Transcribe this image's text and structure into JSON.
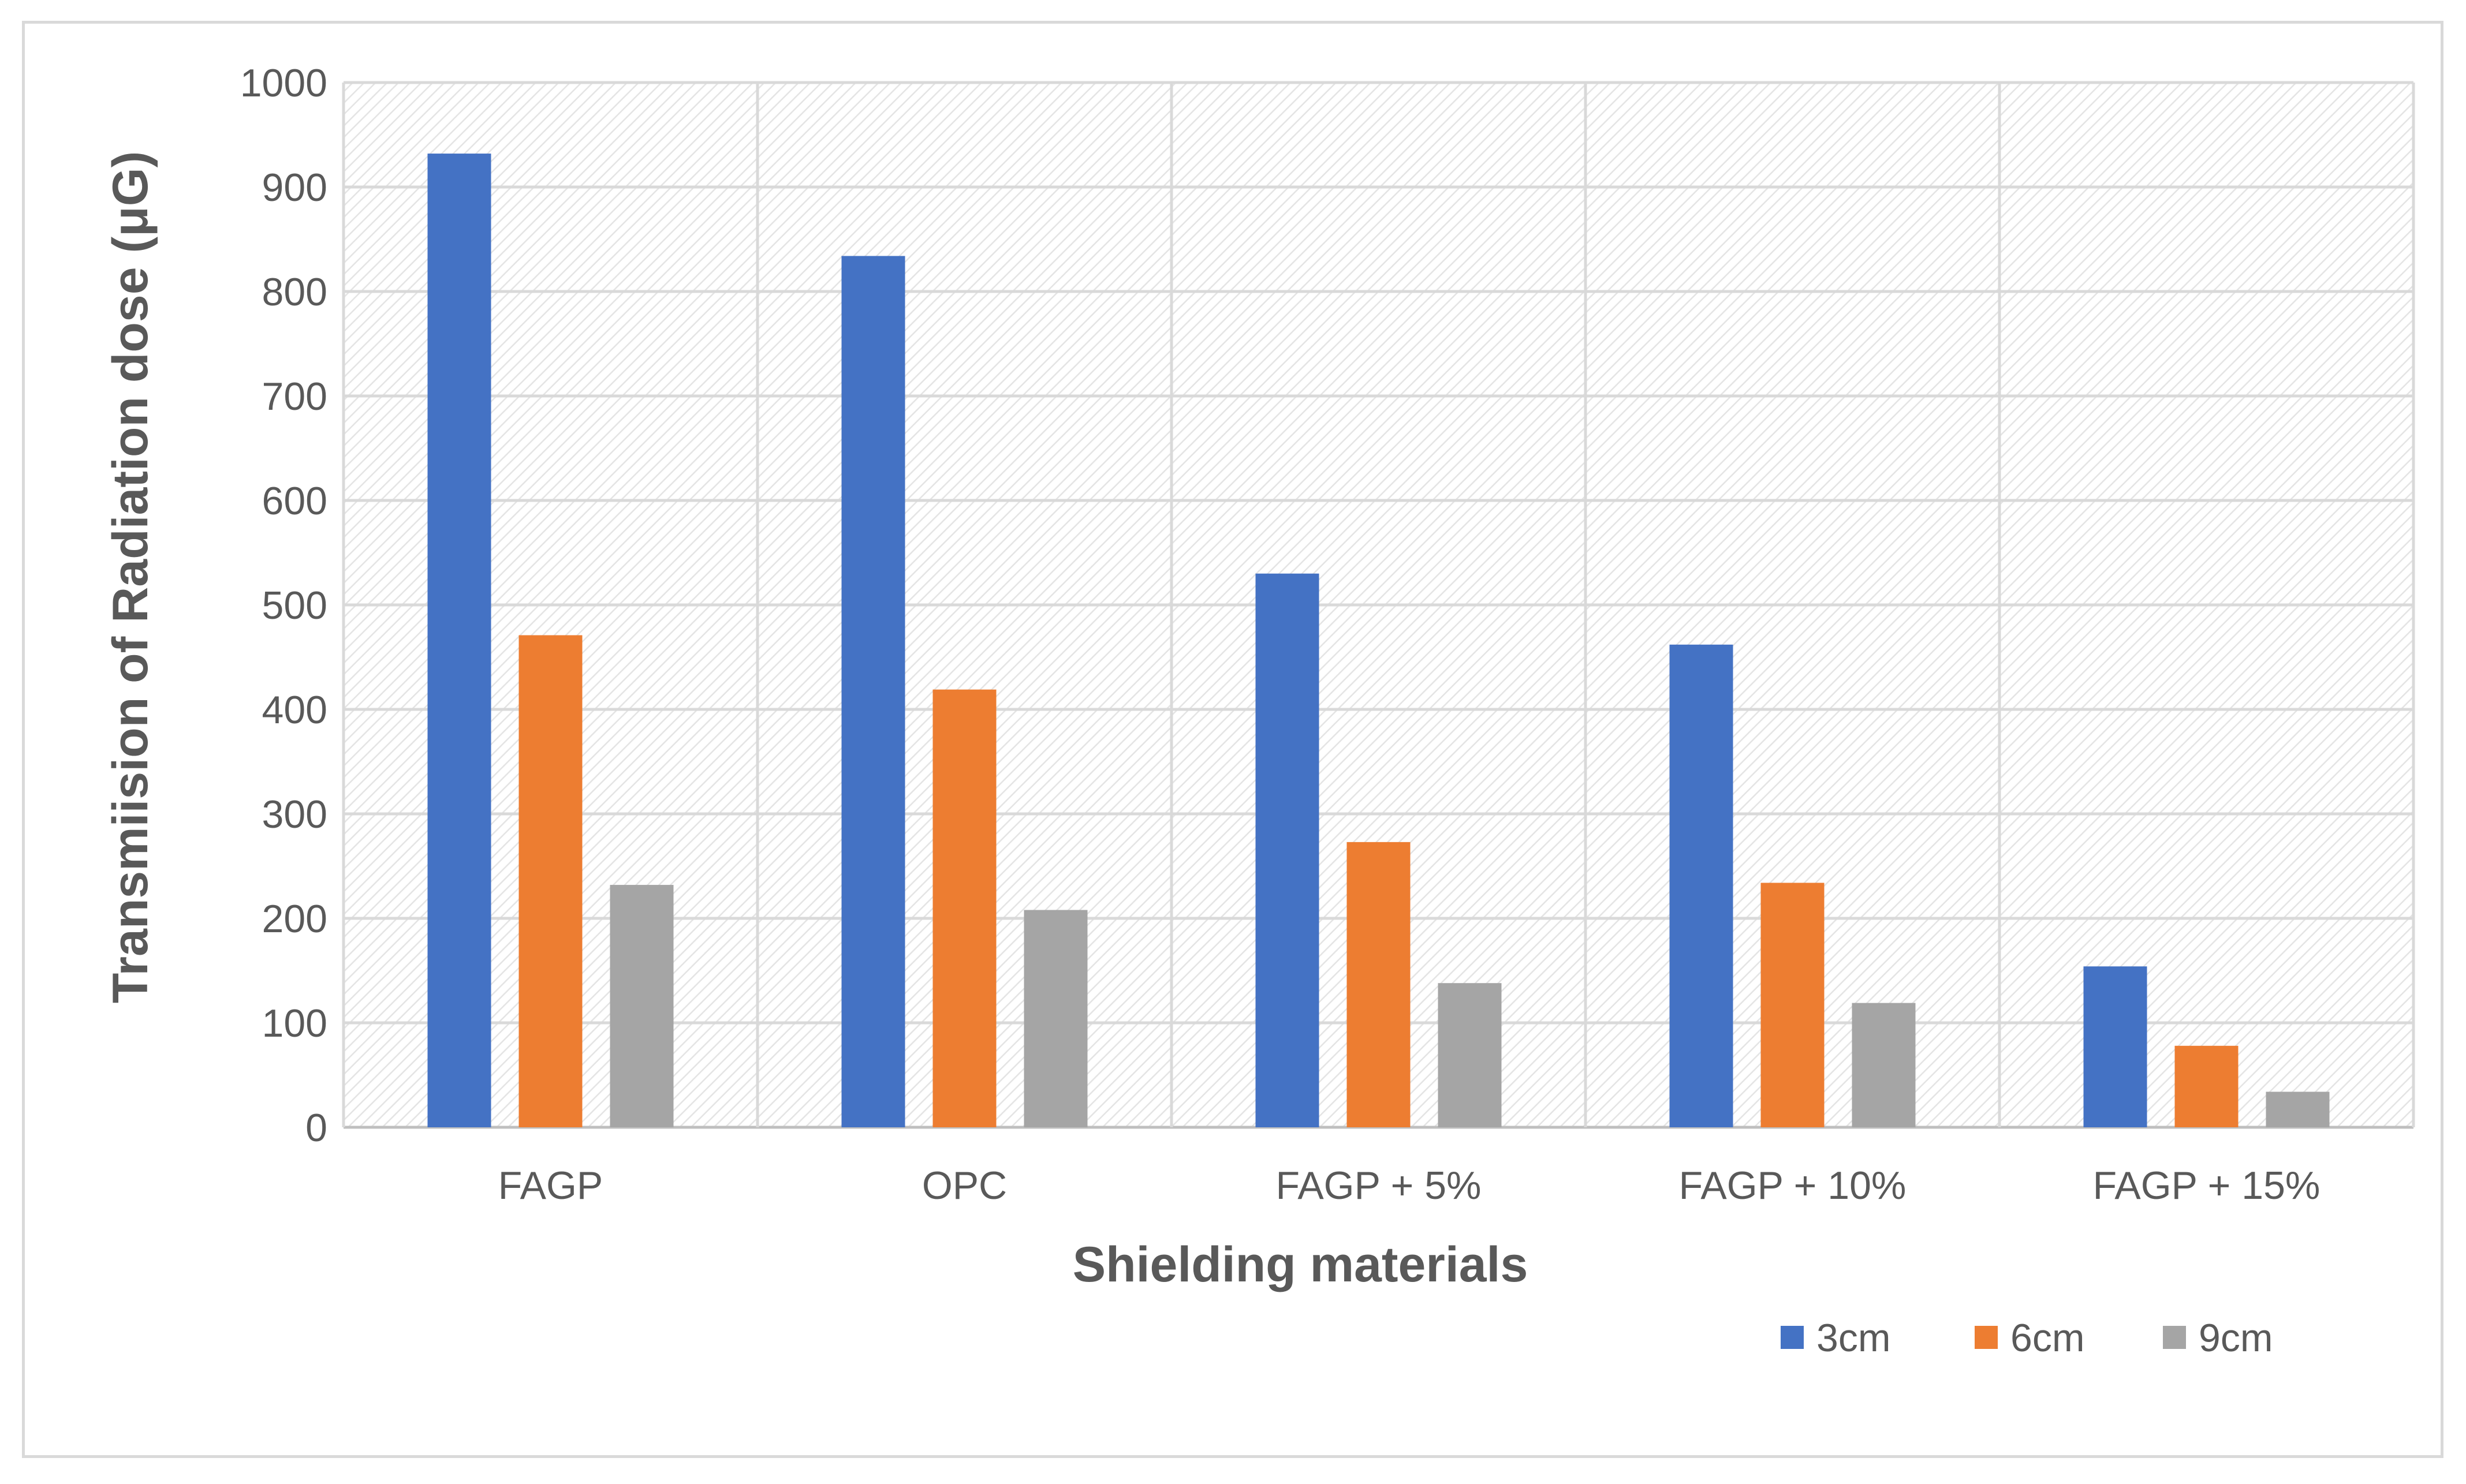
{
  "chart_data": {
    "type": "bar",
    "title": "",
    "xlabel": "Shielding materials",
    "ylabel": "Transmiision of Radiation dose (μG)",
    "categories": [
      "FAGP",
      "OPC",
      "FAGP + 5%",
      "FAGP + 10%",
      "FAGP + 15%"
    ],
    "series": [
      {
        "name": "3cm",
        "color": "#4472c4",
        "values": [
          932,
          834,
          530,
          462,
          154
        ]
      },
      {
        "name": "6cm",
        "color": "#ed7d31",
        "values": [
          471,
          419,
          273,
          234,
          78
        ]
      },
      {
        "name": "9cm",
        "color": "#a5a5a5",
        "values": [
          232,
          208,
          138,
          119,
          34
        ]
      }
    ],
    "ylim": [
      0,
      1000
    ],
    "yticks": [
      0,
      100,
      200,
      300,
      400,
      500,
      600,
      700,
      800,
      900,
      1000
    ],
    "grid": true,
    "legend_position": "bottom-right"
  }
}
